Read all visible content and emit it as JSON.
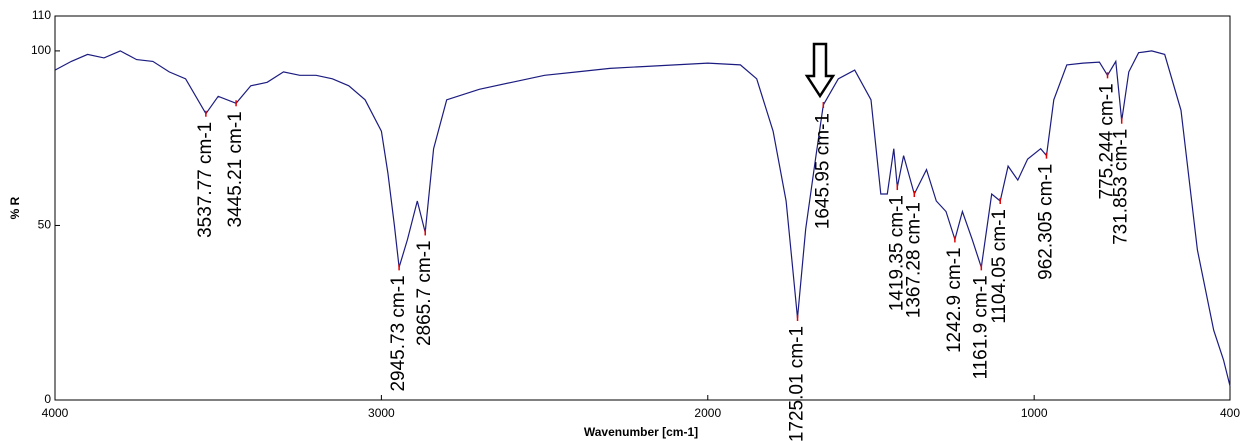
{
  "chart_data": {
    "type": "line",
    "xlabel": "Wavenumber [cm-1]",
    "ylabel": "% R",
    "xlim": [
      4000,
      400
    ],
    "ylim": [
      0,
      110
    ],
    "xticks": [
      4000,
      3000,
      2000,
      1000,
      400
    ],
    "yticks": [
      0,
      50,
      100,
      110
    ],
    "color": "#1c1c80",
    "x": [
      4000,
      3950,
      3900,
      3850,
      3800,
      3750,
      3700,
      3650,
      3600,
      3537.77,
      3500,
      3445.21,
      3400,
      3350,
      3300,
      3250,
      3200,
      3150,
      3100,
      3050,
      3000,
      2980,
      2960,
      2945.73,
      2920,
      2890,
      2865.7,
      2840,
      2800,
      2700,
      2600,
      2500,
      2400,
      2300,
      2200,
      2100,
      2000,
      1900,
      1850,
      1800,
      1760,
      1740,
      1725.01,
      1700,
      1670,
      1645.95,
      1600,
      1550,
      1500,
      1470,
      1450,
      1430,
      1419.35,
      1400,
      1367.28,
      1330,
      1300,
      1270,
      1242.9,
      1220,
      1190,
      1161.9,
      1130,
      1104.05,
      1080,
      1050,
      1020,
      980,
      962.305,
      940,
      900,
      850,
      800,
      775.244,
      750,
      731.853,
      710,
      680,
      640,
      600,
      550,
      500,
      450,
      420,
      400
    ],
    "values": [
      94.5,
      97,
      99,
      98,
      100,
      97.5,
      97,
      94,
      92,
      82,
      87,
      85,
      90,
      91,
      94,
      93,
      93,
      92,
      90,
      86,
      77,
      65,
      50,
      38,
      46,
      57,
      48,
      72,
      86,
      89,
      91,
      93,
      94,
      95,
      95.5,
      96,
      96.5,
      96,
      92,
      77,
      57,
      38,
      23.5,
      49,
      69,
      84.5,
      92,
      94.5,
      86,
      59,
      59,
      72,
      61,
      70,
      59,
      66,
      57,
      54,
      46,
      54,
      46,
      38,
      59,
      57,
      67,
      63,
      69,
      72,
      70,
      86,
      96,
      96.5,
      96.8,
      93,
      97,
      80,
      94,
      99.5,
      100,
      99,
      83,
      43,
      20,
      11.5,
      4
    ],
    "annotations": [
      {
        "x": 3537.77,
        "y": 82,
        "label": "3537.77 cm-1"
      },
      {
        "x": 3445.21,
        "y": 85,
        "label": "3445.21 cm-1"
      },
      {
        "x": 2945.73,
        "y": 38,
        "label": "2945.73 cm-1"
      },
      {
        "x": 2865.7,
        "y": 48,
        "label": "2865.7 cm-1"
      },
      {
        "x": 1725.01,
        "y": 23.5,
        "label": "1725.01 cm-1"
      },
      {
        "x": 1645.95,
        "y": 84.5,
        "label": "1645.95 cm-1"
      },
      {
        "x": 1419.35,
        "y": 61,
        "label": "1419.35 cm-1"
      },
      {
        "x": 1367.28,
        "y": 59,
        "label": "1367.28 cm-1"
      },
      {
        "x": 1242.9,
        "y": 46,
        "label": "1242.9 cm-1"
      },
      {
        "x": 1161.9,
        "y": 38,
        "label": "1161.9 cm-1"
      },
      {
        "x": 1104.05,
        "y": 57,
        "label": "1104.05 cm-1"
      },
      {
        "x": 962.305,
        "y": 70,
        "label": "962.305 cm-1"
      },
      {
        "x": 775.244,
        "y": 93,
        "label": "775.244 cm-1"
      },
      {
        "x": 731.853,
        "y": 80,
        "label": "731.853 cm-1"
      }
    ]
  }
}
